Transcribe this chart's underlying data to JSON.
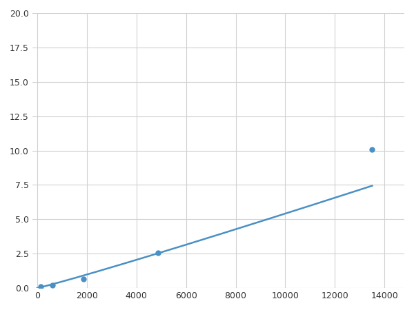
{
  "x_points": [
    156,
    625,
    1875,
    4875,
    13500
  ],
  "y_points": [
    0.1,
    0.2,
    0.65,
    2.55,
    10.1
  ],
  "line_color": "#4A90C4",
  "marker_color": "#4A90C4",
  "marker_size": 6,
  "xlim": [
    -200,
    14800
  ],
  "ylim": [
    0,
    20
  ],
  "xticks": [
    0,
    2000,
    4000,
    6000,
    8000,
    10000,
    12000,
    14000
  ],
  "yticks": [
    0.0,
    2.5,
    5.0,
    7.5,
    10.0,
    12.5,
    15.0,
    17.5,
    20.0
  ],
  "grid_color": "#d0d0d0",
  "background_color": "#ffffff",
  "linewidth": 1.8
}
